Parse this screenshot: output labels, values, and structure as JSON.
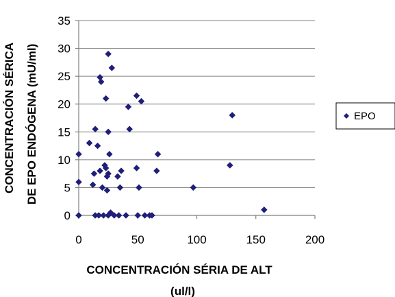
{
  "chart_data": {
    "type": "scatter",
    "title": "",
    "xlabel_line1": "CONCENTRACIÓN SÉRIA DE ALT",
    "xlabel_line2": "(ul/l)",
    "ylabel_line1": "CONCENTRACIÓN SÉRICA",
    "ylabel_line2": "DE EPO ENDÓGENA (mU/ml)",
    "xlim": [
      0,
      200
    ],
    "ylim": [
      0,
      35
    ],
    "xticks": [
      0,
      50,
      100,
      150,
      200
    ],
    "yticks": [
      0,
      5,
      10,
      15,
      20,
      25,
      30,
      35
    ],
    "grid": "horizontal",
    "legend_position": "right",
    "series": [
      {
        "name": "EPO",
        "color": "#1f1f7a",
        "marker": "diamond",
        "points": [
          {
            "x": 0,
            "y": 0
          },
          {
            "x": 0,
            "y": 6
          },
          {
            "x": 0,
            "y": 11
          },
          {
            "x": 9,
            "y": 13
          },
          {
            "x": 12,
            "y": 5.5
          },
          {
            "x": 13,
            "y": 7.5
          },
          {
            "x": 14,
            "y": 0
          },
          {
            "x": 14,
            "y": 15.5
          },
          {
            "x": 16,
            "y": 12.5
          },
          {
            "x": 17,
            "y": 0
          },
          {
            "x": 18,
            "y": 8
          },
          {
            "x": 18,
            "y": 24.8
          },
          {
            "x": 19,
            "y": 24
          },
          {
            "x": 20,
            "y": 5
          },
          {
            "x": 21,
            "y": 0
          },
          {
            "x": 22,
            "y": 9
          },
          {
            "x": 23,
            "y": 8.5
          },
          {
            "x": 23,
            "y": 21
          },
          {
            "x": 24,
            "y": 4.5
          },
          {
            "x": 24,
            "y": 7
          },
          {
            "x": 25,
            "y": 29
          },
          {
            "x": 25,
            "y": 15
          },
          {
            "x": 25,
            "y": 7.5
          },
          {
            "x": 25,
            "y": 0
          },
          {
            "x": 26,
            "y": 11
          },
          {
            "x": 27,
            "y": 0.5
          },
          {
            "x": 28,
            "y": 26.5
          },
          {
            "x": 30,
            "y": 0
          },
          {
            "x": 33,
            "y": 7
          },
          {
            "x": 34,
            "y": 0
          },
          {
            "x": 35,
            "y": 5
          },
          {
            "x": 36,
            "y": 8
          },
          {
            "x": 40,
            "y": 0
          },
          {
            "x": 42,
            "y": 19.5
          },
          {
            "x": 43,
            "y": 15.5
          },
          {
            "x": 49,
            "y": 21.5
          },
          {
            "x": 49,
            "y": 8.5
          },
          {
            "x": 50,
            "y": 0
          },
          {
            "x": 51,
            "y": 5
          },
          {
            "x": 53,
            "y": 20.5
          },
          {
            "x": 56,
            "y": 0
          },
          {
            "x": 60,
            "y": 0
          },
          {
            "x": 62,
            "y": 0
          },
          {
            "x": 66,
            "y": 8
          },
          {
            "x": 67,
            "y": 11
          },
          {
            "x": 97,
            "y": 5
          },
          {
            "x": 128,
            "y": 9
          },
          {
            "x": 130,
            "y": 18
          },
          {
            "x": 157,
            "y": 1
          }
        ]
      }
    ]
  }
}
